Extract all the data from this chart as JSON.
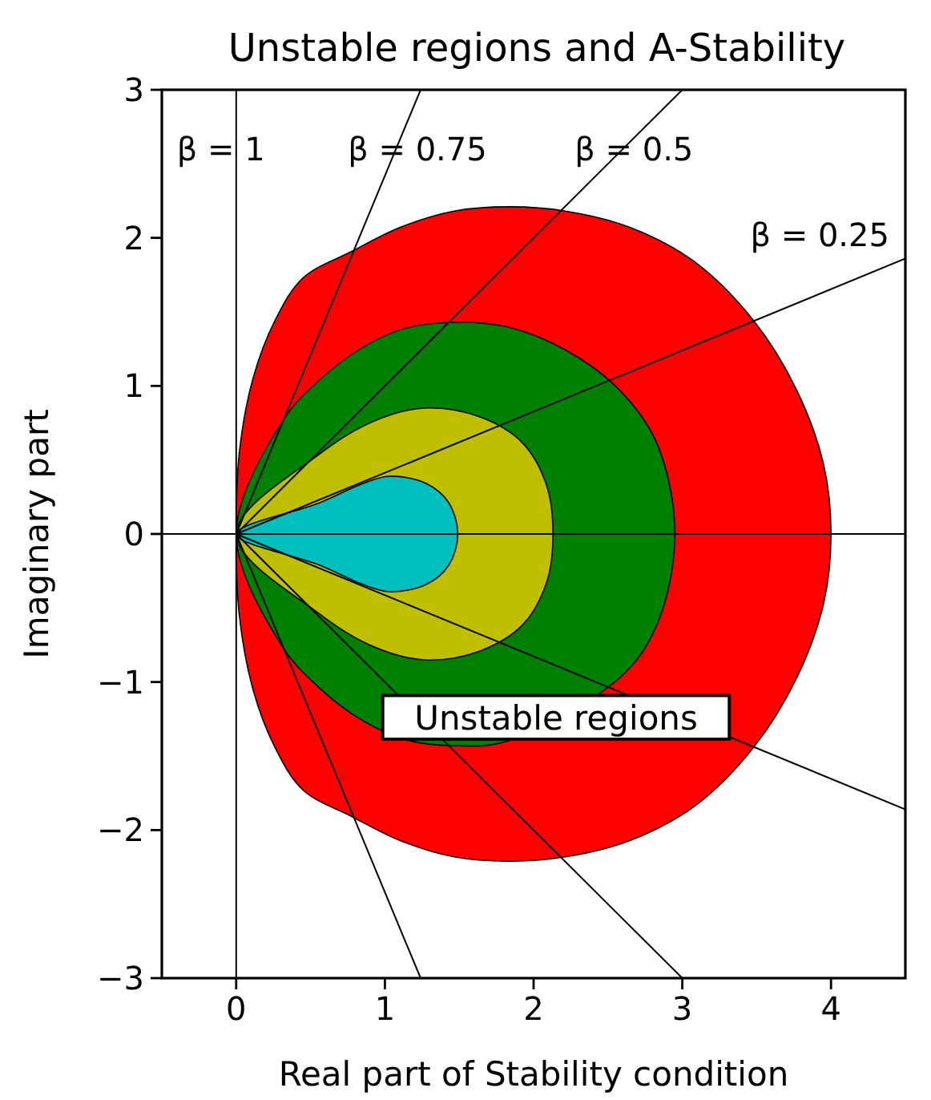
{
  "chart_data": {
    "type": "area",
    "title": "Unstable regions and A-Stability",
    "xlabel": "Real part of Stability condition",
    "ylabel": "Imaginary part",
    "xlim": [
      -0.5,
      4.5
    ],
    "ylim": [
      -3,
      3
    ],
    "xticks": [
      0,
      1,
      2,
      3,
      4
    ],
    "yticks": [
      {
        "value": -3,
        "label": "−3"
      },
      {
        "value": -2,
        "label": "−2"
      },
      {
        "value": -1,
        "label": "−1"
      },
      0,
      1,
      2,
      3
    ],
    "series": [
      {
        "color": "#ff0000",
        "x": [
          0,
          0.02,
          0.11,
          0.26,
          0.45,
          0.78,
          1.1,
          1.46,
          1.84,
          2.22,
          2.65,
          3.08,
          3.48,
          3.77,
          3.95,
          4.0,
          3.95,
          3.77,
          3.48,
          3.08,
          2.65,
          2.22,
          1.84,
          1.46,
          1.1,
          0.78,
          0.45,
          0.26,
          0.11,
          0.02
        ],
        "values": [
          0,
          0.54,
          1.04,
          1.44,
          1.73,
          1.91,
          2.07,
          2.18,
          2.21,
          2.18,
          2.07,
          1.84,
          1.44,
          0.97,
          0.47,
          0,
          -0.47,
          -0.97,
          -1.44,
          -1.84,
          -2.07,
          -2.18,
          -2.21,
          -2.18,
          -2.07,
          -1.91,
          -1.73,
          -1.44,
          -1.04,
          -0.54
        ]
      },
      {
        "color": "#008000",
        "x": [
          0,
          0.31,
          0.56,
          0.85,
          1.14,
          1.46,
          1.82,
          2.22,
          2.58,
          2.83,
          2.95,
          2.83,
          2.58,
          1.82,
          1.46,
          1.14,
          0.85,
          0.56,
          0.31
        ],
        "values": [
          0,
          0.76,
          1.04,
          1.26,
          1.39,
          1.43,
          1.4,
          1.24,
          0.97,
          0.61,
          0,
          -0.61,
          -0.97,
          -1.4,
          -1.43,
          -1.39,
          -1.26,
          -1.04,
          -0.76
        ]
      },
      {
        "color": "#bfbf00",
        "x": [
          0,
          0.56,
          0.92,
          1.26,
          1.64,
          1.93,
          2.09,
          2.13,
          2.09,
          1.93,
          1.64,
          1.26,
          0.92,
          0.56
        ],
        "values": [
          0,
          0.54,
          0.76,
          0.85,
          0.79,
          0.61,
          0.32,
          0,
          -0.32,
          -0.61,
          -0.79,
          -0.85,
          -0.76,
          -0.54
        ]
      },
      {
        "color": "#00bfbf",
        "x": [
          0,
          0.56,
          0.85,
          1.03,
          1.28,
          1.43,
          1.49,
          1.43,
          1.28,
          1.03,
          0.85,
          0.56
        ],
        "values": [
          0,
          0.21,
          0.34,
          0.39,
          0.34,
          0.21,
          0,
          -0.21,
          -0.34,
          -0.39,
          -0.34,
          -0.21
        ]
      },
      {
        "type": "line",
        "name": "β = 0.75",
        "color": "#000000",
        "x": [
          0,
          1.24
        ],
        "values": [
          0,
          3
        ]
      },
      {
        "type": "line",
        "color": "#000000",
        "x": [
          0,
          1.24
        ],
        "values": [
          0,
          -3
        ]
      },
      {
        "type": "line",
        "name": "β = 0.5",
        "color": "#000000",
        "x": [
          0,
          3.0
        ],
        "values": [
          0,
          3
        ]
      },
      {
        "type": "line",
        "color": "#000000",
        "x": [
          0,
          3.0
        ],
        "values": [
          0,
          -3
        ]
      },
      {
        "type": "line",
        "name": "β = 0.25",
        "color": "#000000",
        "x": [
          0,
          4.5
        ],
        "values": [
          0,
          1.86
        ]
      },
      {
        "type": "line",
        "color": "#000000",
        "x": [
          0,
          4.5
        ],
        "values": [
          0,
          -1.86
        ]
      },
      {
        "type": "line",
        "color": "#000000",
        "x": [
          -0.5,
          4.5
        ],
        "values": [
          0,
          0
        ]
      }
    ],
    "ref_lines": [
      {
        "axis": "x",
        "value": 0,
        "color": "#000000"
      }
    ],
    "annotations": [
      {
        "text": "β = 1",
        "x": 0,
        "y": 2.6
      },
      "Unstable regions"
    ]
  }
}
